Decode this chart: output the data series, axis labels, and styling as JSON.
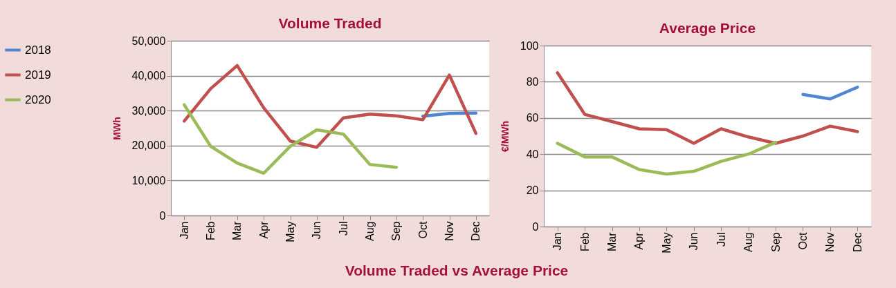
{
  "chart_data": [
    {
      "type": "line",
      "title": "Volume Traded",
      "ylabel": "MWh",
      "categories": [
        "Jan",
        "Feb",
        "Mar",
        "Apr",
        "May",
        "Jun",
        "Jul",
        "Aug",
        "Sep",
        "Oct",
        "Nov",
        "Dec"
      ],
      "series": [
        {
          "name": "2018",
          "color": "#4f86cf",
          "values": [
            null,
            null,
            null,
            null,
            null,
            null,
            null,
            null,
            null,
            28400,
            29200,
            29300
          ]
        },
        {
          "name": "2019",
          "color": "#c0504d",
          "values": [
            27000,
            36300,
            42900,
            30800,
            21300,
            19500,
            27900,
            29000,
            28500,
            27400,
            40200,
            23500
          ]
        },
        {
          "name": "2020",
          "color": "#9bbb59",
          "values": [
            31700,
            19800,
            15000,
            12100,
            19800,
            24500,
            23300,
            14600,
            13800,
            null,
            null,
            null
          ]
        }
      ],
      "ylim": [
        0,
        50000
      ],
      "yticks": [
        {
          "value": 0,
          "label": "0"
        },
        {
          "value": 10000,
          "label": "10,000"
        },
        {
          "value": 20000,
          "label": "20,000"
        },
        {
          "value": 30000,
          "label": "30,000"
        },
        {
          "value": 40000,
          "label": "40,000"
        },
        {
          "value": 50000,
          "label": "50,000"
        }
      ],
      "grid": "y",
      "legend": "left",
      "marker": "none",
      "line_style": "solid",
      "annotations": [
        "Volume Traded vs Average Price"
      ]
    },
    {
      "type": "line",
      "title": "Average Price",
      "ylabel": "€/MWh",
      "categories": [
        "Jan",
        "Feb",
        "Mar",
        "Apr",
        "May",
        "Jun",
        "Jul",
        "Aug",
        "Sep",
        "Oct",
        "Nov",
        "Dec"
      ],
      "series": [
        {
          "name": "2018",
          "color": "#4f86cf",
          "values": [
            null,
            null,
            null,
            null,
            null,
            null,
            null,
            null,
            null,
            73,
            70.5,
            77
          ]
        },
        {
          "name": "2019",
          "color": "#c0504d",
          "values": [
            85,
            62,
            58,
            54,
            53.5,
            46,
            54,
            49.5,
            46,
            50,
            55.5,
            52.5
          ]
        },
        {
          "name": "2020",
          "color": "#9bbb59",
          "values": [
            46,
            38.5,
            38.5,
            31.5,
            29,
            30.5,
            36,
            40,
            46.5,
            null,
            null,
            null
          ]
        }
      ],
      "ylim": [
        0,
        100
      ],
      "yticks": [
        0,
        20,
        40,
        60,
        80,
        100
      ],
      "grid": "y",
      "legend": false,
      "marker": "none",
      "line_style": "solid"
    }
  ]
}
